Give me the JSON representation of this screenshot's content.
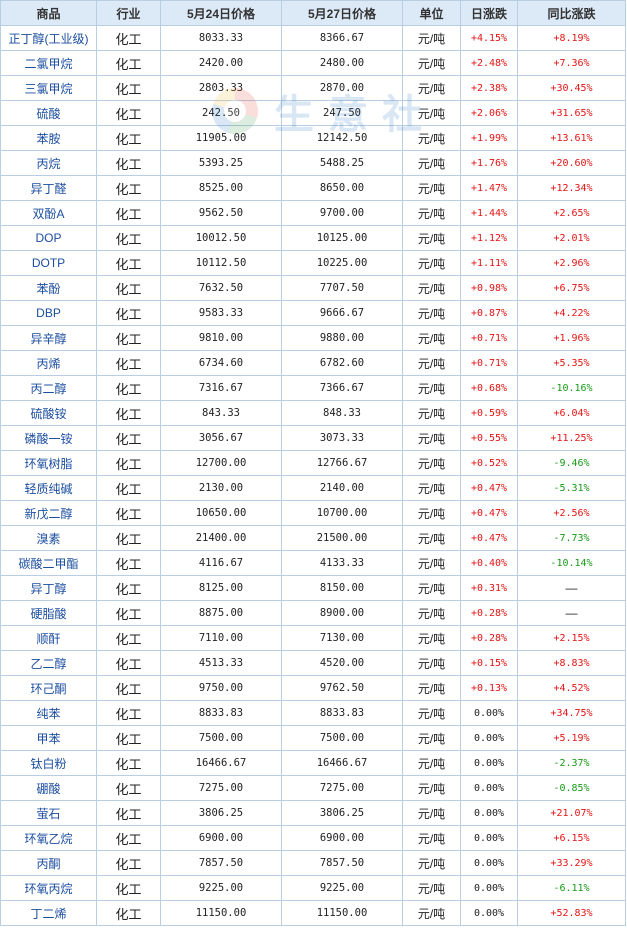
{
  "headers": [
    "商品",
    "行业",
    "5月24日价格",
    "5月27日价格",
    "单位",
    "日涨跌",
    "同比涨跌"
  ],
  "watermark": {
    "text": "生意社"
  },
  "colors": {
    "up": "#e31414",
    "down": "#179a17",
    "name": "#1c4ea0",
    "header_bg": "#dce9f6",
    "border": "#b9cee2"
  },
  "rows": [
    {
      "name": "正丁醇(工业级)",
      "industry": "化工",
      "price_524": "8033.33",
      "price_527": "8366.67",
      "unit": "元/吨",
      "daily": "+4.15%",
      "yoy": "+8.19%"
    },
    {
      "name": "二氯甲烷",
      "industry": "化工",
      "price_524": "2420.00",
      "price_527": "2480.00",
      "unit": "元/吨",
      "daily": "+2.48%",
      "yoy": "+7.36%"
    },
    {
      "name": "三氯甲烷",
      "industry": "化工",
      "price_524": "2803.33",
      "price_527": "2870.00",
      "unit": "元/吨",
      "daily": "+2.38%",
      "yoy": "+30.45%"
    },
    {
      "name": "硫酸",
      "industry": "化工",
      "price_524": "242.50",
      "price_527": "247.50",
      "unit": "元/吨",
      "daily": "+2.06%",
      "yoy": "+31.65%"
    },
    {
      "name": "苯胺",
      "industry": "化工",
      "price_524": "11905.00",
      "price_527": "12142.50",
      "unit": "元/吨",
      "daily": "+1.99%",
      "yoy": "+13.61%"
    },
    {
      "name": "丙烷",
      "industry": "化工",
      "price_524": "5393.25",
      "price_527": "5488.25",
      "unit": "元/吨",
      "daily": "+1.76%",
      "yoy": "+20.60%"
    },
    {
      "name": "异丁醛",
      "industry": "化工",
      "price_524": "8525.00",
      "price_527": "8650.00",
      "unit": "元/吨",
      "daily": "+1.47%",
      "yoy": "+12.34%"
    },
    {
      "name": "双酚A",
      "industry": "化工",
      "price_524": "9562.50",
      "price_527": "9700.00",
      "unit": "元/吨",
      "daily": "+1.44%",
      "yoy": "+2.65%"
    },
    {
      "name": "DOP",
      "industry": "化工",
      "price_524": "10012.50",
      "price_527": "10125.00",
      "unit": "元/吨",
      "daily": "+1.12%",
      "yoy": "+2.01%"
    },
    {
      "name": "DOTP",
      "industry": "化工",
      "price_524": "10112.50",
      "price_527": "10225.00",
      "unit": "元/吨",
      "daily": "+1.11%",
      "yoy": "+2.96%"
    },
    {
      "name": "苯酚",
      "industry": "化工",
      "price_524": "7632.50",
      "price_527": "7707.50",
      "unit": "元/吨",
      "daily": "+0.98%",
      "yoy": "+6.75%"
    },
    {
      "name": "DBP",
      "industry": "化工",
      "price_524": "9583.33",
      "price_527": "9666.67",
      "unit": "元/吨",
      "daily": "+0.87%",
      "yoy": "+4.22%"
    },
    {
      "name": "异辛醇",
      "industry": "化工",
      "price_524": "9810.00",
      "price_527": "9880.00",
      "unit": "元/吨",
      "daily": "+0.71%",
      "yoy": "+1.96%"
    },
    {
      "name": "丙烯",
      "industry": "化工",
      "price_524": "6734.60",
      "price_527": "6782.60",
      "unit": "元/吨",
      "daily": "+0.71%",
      "yoy": "+5.35%"
    },
    {
      "name": "丙二醇",
      "industry": "化工",
      "price_524": "7316.67",
      "price_527": "7366.67",
      "unit": "元/吨",
      "daily": "+0.68%",
      "yoy": "-10.16%"
    },
    {
      "name": "硫酸铵",
      "industry": "化工",
      "price_524": "843.33",
      "price_527": "848.33",
      "unit": "元/吨",
      "daily": "+0.59%",
      "yoy": "+6.04%"
    },
    {
      "name": "磷酸一铵",
      "industry": "化工",
      "price_524": "3056.67",
      "price_527": "3073.33",
      "unit": "元/吨",
      "daily": "+0.55%",
      "yoy": "+11.25%"
    },
    {
      "name": "环氧树脂",
      "industry": "化工",
      "price_524": "12700.00",
      "price_527": "12766.67",
      "unit": "元/吨",
      "daily": "+0.52%",
      "yoy": "-9.46%"
    },
    {
      "name": "轻质纯碱",
      "industry": "化工",
      "price_524": "2130.00",
      "price_527": "2140.00",
      "unit": "元/吨",
      "daily": "+0.47%",
      "yoy": "-5.31%"
    },
    {
      "name": "新戊二醇",
      "industry": "化工",
      "price_524": "10650.00",
      "price_527": "10700.00",
      "unit": "元/吨",
      "daily": "+0.47%",
      "yoy": "+2.56%"
    },
    {
      "name": "溴素",
      "industry": "化工",
      "price_524": "21400.00",
      "price_527": "21500.00",
      "unit": "元/吨",
      "daily": "+0.47%",
      "yoy": "-7.73%"
    },
    {
      "name": "碳酸二甲酯",
      "industry": "化工",
      "price_524": "4116.67",
      "price_527": "4133.33",
      "unit": "元/吨",
      "daily": "+0.40%",
      "yoy": "-10.14%"
    },
    {
      "name": "异丁醇",
      "industry": "化工",
      "price_524": "8125.00",
      "price_527": "8150.00",
      "unit": "元/吨",
      "daily": "+0.31%",
      "yoy": "—"
    },
    {
      "name": "硬脂酸",
      "industry": "化工",
      "price_524": "8875.00",
      "price_527": "8900.00",
      "unit": "元/吨",
      "daily": "+0.28%",
      "yoy": "—"
    },
    {
      "name": "顺酐",
      "industry": "化工",
      "price_524": "7110.00",
      "price_527": "7130.00",
      "unit": "元/吨",
      "daily": "+0.28%",
      "yoy": "+2.15%"
    },
    {
      "name": "乙二醇",
      "industry": "化工",
      "price_524": "4513.33",
      "price_527": "4520.00",
      "unit": "元/吨",
      "daily": "+0.15%",
      "yoy": "+8.83%"
    },
    {
      "name": "环己酮",
      "industry": "化工",
      "price_524": "9750.00",
      "price_527": "9762.50",
      "unit": "元/吨",
      "daily": "+0.13%",
      "yoy": "+4.52%"
    },
    {
      "name": "纯苯",
      "industry": "化工",
      "price_524": "8833.83",
      "price_527": "8833.83",
      "unit": "元/吨",
      "daily": "0.00%",
      "yoy": "+34.75%"
    },
    {
      "name": "甲苯",
      "industry": "化工",
      "price_524": "7500.00",
      "price_527": "7500.00",
      "unit": "元/吨",
      "daily": "0.00%",
      "yoy": "+5.19%"
    },
    {
      "name": "钛白粉",
      "industry": "化工",
      "price_524": "16466.67",
      "price_527": "16466.67",
      "unit": "元/吨",
      "daily": "0.00%",
      "yoy": "-2.37%"
    },
    {
      "name": "硼酸",
      "industry": "化工",
      "price_524": "7275.00",
      "price_527": "7275.00",
      "unit": "元/吨",
      "daily": "0.00%",
      "yoy": "-0.85%"
    },
    {
      "name": "萤石",
      "industry": "化工",
      "price_524": "3806.25",
      "price_527": "3806.25",
      "unit": "元/吨",
      "daily": "0.00%",
      "yoy": "+21.07%"
    },
    {
      "name": "环氧乙烷",
      "industry": "化工",
      "price_524": "6900.00",
      "price_527": "6900.00",
      "unit": "元/吨",
      "daily": "0.00%",
      "yoy": "+6.15%"
    },
    {
      "name": "丙酮",
      "industry": "化工",
      "price_524": "7857.50",
      "price_527": "7857.50",
      "unit": "元/吨",
      "daily": "0.00%",
      "yoy": "+33.29%"
    },
    {
      "name": "环氧丙烷",
      "industry": "化工",
      "price_524": "9225.00",
      "price_527": "9225.00",
      "unit": "元/吨",
      "daily": "0.00%",
      "yoy": "-6.11%"
    },
    {
      "name": "丁二烯",
      "industry": "化工",
      "price_524": "11150.00",
      "price_527": "11150.00",
      "unit": "元/吨",
      "daily": "0.00%",
      "yoy": "+52.83%"
    }
  ]
}
